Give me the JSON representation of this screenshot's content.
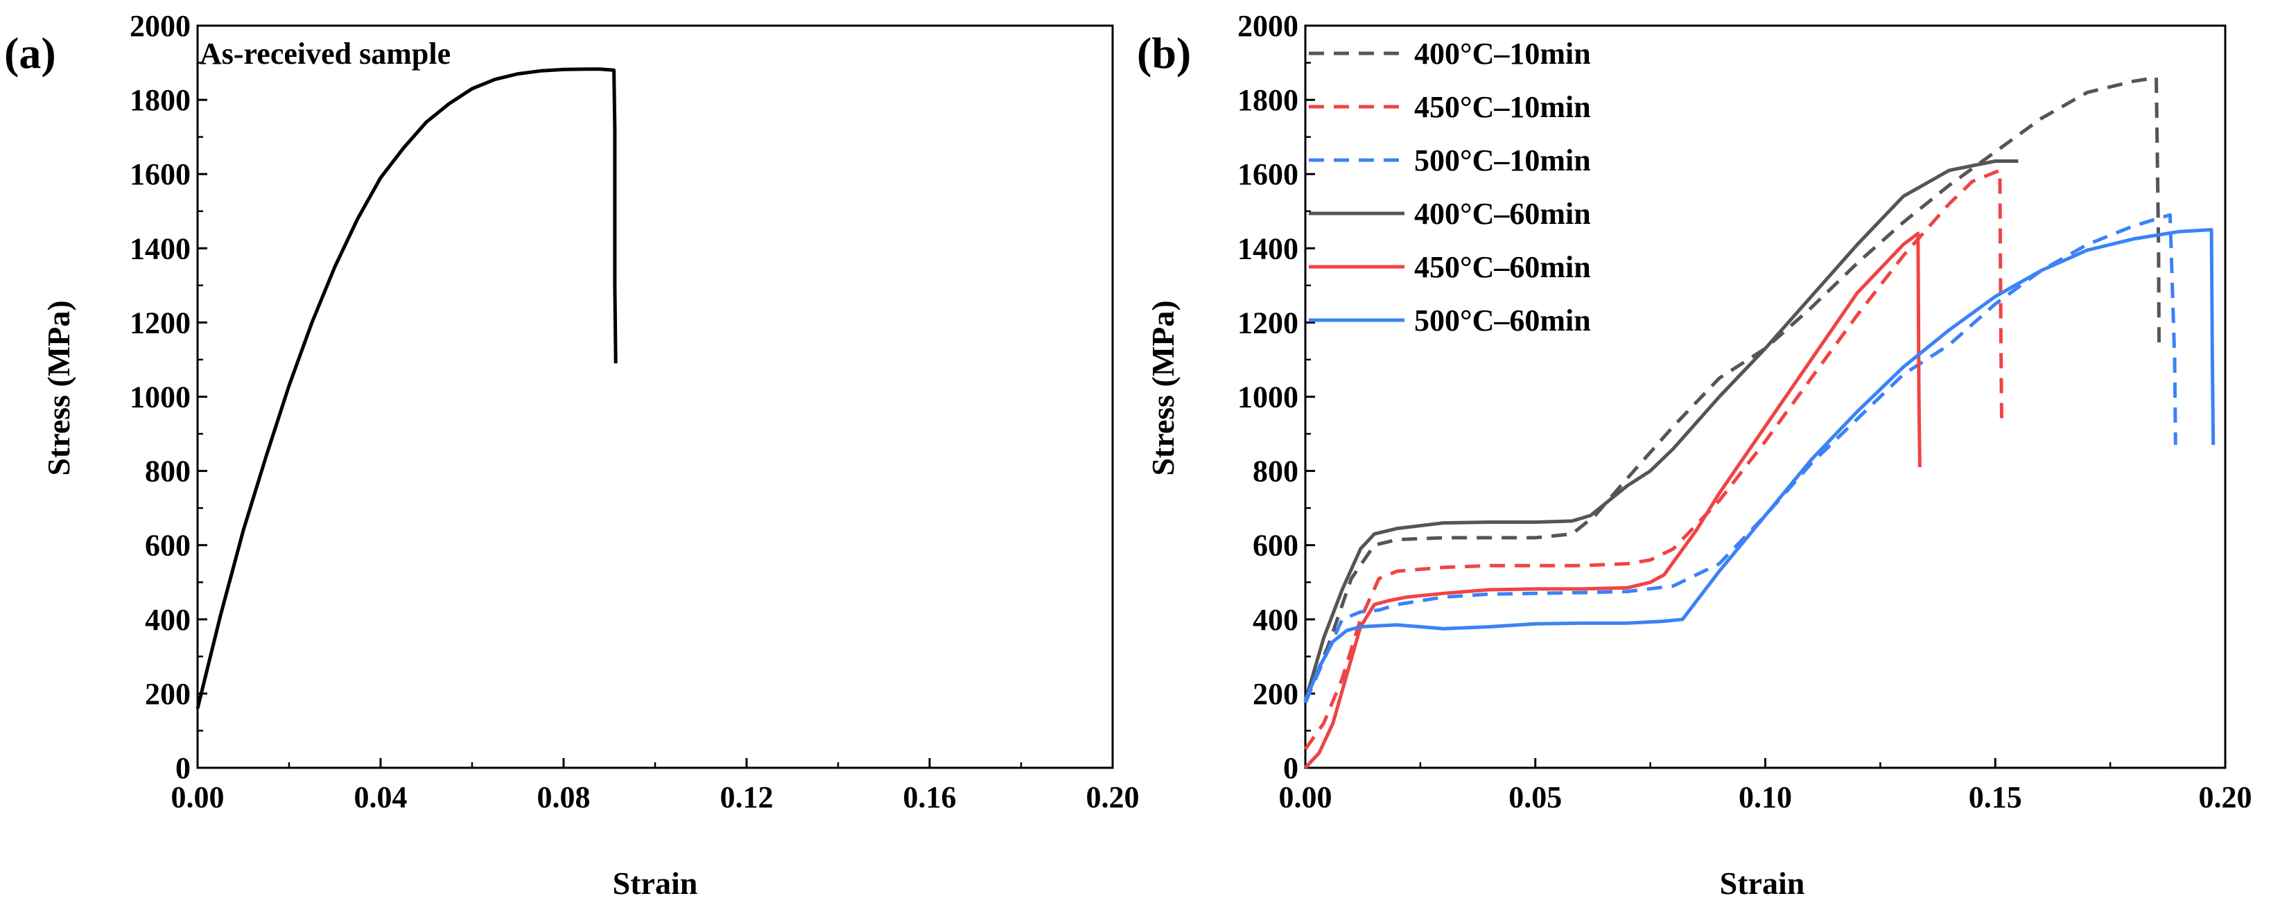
{
  "chart_data": [
    {
      "panel": "(a)",
      "type": "line",
      "annotation": "As-received sample",
      "xlabel": "Strain",
      "ylabel": "Stress (MPa)",
      "xlim": [
        0,
        0.2
      ],
      "ylim": [
        0,
        2000
      ],
      "xticks": [
        0.0,
        0.04,
        0.08,
        0.12,
        0.16,
        0.2
      ],
      "xtick_labels": [
        "0.00",
        "0.04",
        "0.08",
        "0.12",
        "0.16",
        "0.20"
      ],
      "yticks": [
        0,
        200,
        400,
        600,
        800,
        1000,
        1200,
        1400,
        1600,
        1800,
        2000
      ],
      "ytick_labels": [
        "0",
        "200",
        "400",
        "600",
        "800",
        "1000",
        "1200",
        "1400",
        "1600",
        "1800",
        "2000"
      ],
      "grid": false,
      "series": [
        {
          "name": "As-received sample",
          "color": "#000000",
          "dash": "solid",
          "x": [
            0.0,
            0.005,
            0.01,
            0.015,
            0.02,
            0.025,
            0.03,
            0.035,
            0.04,
            0.045,
            0.05,
            0.055,
            0.06,
            0.065,
            0.07,
            0.075,
            0.08,
            0.085,
            0.088,
            0.091,
            0.0912,
            0.0912,
            0.0914
          ],
          "y": [
            160,
            410,
            640,
            840,
            1030,
            1200,
            1350,
            1480,
            1590,
            1670,
            1740,
            1790,
            1830,
            1855,
            1870,
            1878,
            1882,
            1883,
            1883,
            1880,
            1720,
            1300,
            1090
          ]
        }
      ]
    },
    {
      "panel": "(b)",
      "type": "line",
      "xlabel": "Strain",
      "ylabel": "Stress (MPa)",
      "xlim": [
        0,
        0.2
      ],
      "ylim": [
        0,
        2000
      ],
      "xticks": [
        0.0,
        0.05,
        0.1,
        0.15,
        0.2
      ],
      "xtick_labels": [
        "0.00",
        "0.05",
        "0.10",
        "0.15",
        "0.20"
      ],
      "yticks": [
        0,
        200,
        400,
        600,
        800,
        1000,
        1200,
        1400,
        1600,
        1800,
        2000
      ],
      "ytick_labels": [
        "0",
        "200",
        "400",
        "600",
        "800",
        "1000",
        "1200",
        "1400",
        "1600",
        "1800",
        "2000"
      ],
      "grid": false,
      "legend_position": "top-left",
      "series": [
        {
          "name": "400°C–10min",
          "color": "#555555",
          "dash": "dashed",
          "x": [
            0.0,
            0.005,
            0.01,
            0.015,
            0.02,
            0.03,
            0.04,
            0.05,
            0.058,
            0.063,
            0.07,
            0.08,
            0.09,
            0.1,
            0.11,
            0.12,
            0.13,
            0.14,
            0.15,
            0.16,
            0.17,
            0.18,
            0.185,
            0.1855,
            0.1856
          ],
          "y": [
            180,
            330,
            510,
            600,
            615,
            620,
            620,
            620,
            630,
            680,
            780,
            920,
            1050,
            1130,
            1240,
            1360,
            1470,
            1570,
            1660,
            1750,
            1820,
            1850,
            1860,
            1400,
            1130
          ]
        },
        {
          "name": "450°C–10min",
          "color": "#ef4444",
          "dash": "dashed",
          "x": [
            0.0,
            0.004,
            0.008,
            0.012,
            0.016,
            0.02,
            0.03,
            0.04,
            0.05,
            0.06,
            0.07,
            0.075,
            0.08,
            0.09,
            0.1,
            0.11,
            0.12,
            0.13,
            0.14,
            0.145,
            0.151,
            0.1512,
            0.1514
          ],
          "y": [
            50,
            120,
            240,
            400,
            510,
            530,
            540,
            545,
            545,
            545,
            550,
            560,
            590,
            720,
            880,
            1050,
            1220,
            1380,
            1520,
            1580,
            1610,
            1200,
            930
          ]
        },
        {
          "name": "500°C–10min",
          "color": "#3b82f6",
          "dash": "dashed",
          "x": [
            0.0,
            0.004,
            0.008,
            0.012,
            0.016,
            0.02,
            0.03,
            0.04,
            0.05,
            0.06,
            0.07,
            0.08,
            0.09,
            0.1,
            0.11,
            0.12,
            0.13,
            0.14,
            0.15,
            0.16,
            0.17,
            0.18,
            0.188,
            0.189,
            0.1892
          ],
          "y": [
            175,
            290,
            400,
            420,
            425,
            440,
            460,
            468,
            470,
            472,
            475,
            490,
            550,
            680,
            820,
            940,
            1060,
            1140,
            1250,
            1340,
            1410,
            1460,
            1490,
            1100,
            870
          ]
        },
        {
          "name": "400°C–60min",
          "color": "#555555",
          "dash": "solid",
          "x": [
            0.0,
            0.004,
            0.008,
            0.012,
            0.015,
            0.02,
            0.03,
            0.04,
            0.05,
            0.058,
            0.062,
            0.07,
            0.075,
            0.08,
            0.09,
            0.1,
            0.11,
            0.12,
            0.13,
            0.14,
            0.15,
            0.155
          ],
          "y": [
            180,
            350,
            480,
            590,
            630,
            645,
            660,
            662,
            662,
            665,
            680,
            760,
            800,
            860,
            1000,
            1130,
            1270,
            1410,
            1540,
            1610,
            1635,
            1635
          ]
        },
        {
          "name": "450°C–60min",
          "color": "#ef4444",
          "dash": "solid",
          "x": [
            0.0,
            0.003,
            0.006,
            0.009,
            0.012,
            0.015,
            0.018,
            0.022,
            0.03,
            0.04,
            0.05,
            0.06,
            0.07,
            0.075,
            0.078,
            0.085,
            0.09,
            0.1,
            0.11,
            0.12,
            0.13,
            0.1332,
            0.1334,
            0.1336
          ],
          "y": [
            0,
            40,
            120,
            250,
            380,
            440,
            450,
            460,
            470,
            480,
            482,
            482,
            485,
            500,
            520,
            640,
            740,
            920,
            1100,
            1280,
            1410,
            1440,
            1000,
            810
          ]
        },
        {
          "name": "500°C–60min",
          "color": "#3b82f6",
          "dash": "solid",
          "x": [
            0.0,
            0.003,
            0.006,
            0.009,
            0.012,
            0.015,
            0.02,
            0.03,
            0.04,
            0.05,
            0.06,
            0.07,
            0.078,
            0.082,
            0.09,
            0.1,
            0.11,
            0.12,
            0.13,
            0.14,
            0.15,
            0.16,
            0.17,
            0.18,
            0.19,
            0.197,
            0.1972,
            0.1974
          ],
          "y": [
            180,
            270,
            340,
            370,
            380,
            382,
            385,
            375,
            380,
            388,
            390,
            390,
            395,
            400,
            530,
            680,
            830,
            960,
            1080,
            1180,
            1270,
            1340,
            1395,
            1425,
            1445,
            1450,
            1100,
            870
          ]
        }
      ]
    }
  ]
}
